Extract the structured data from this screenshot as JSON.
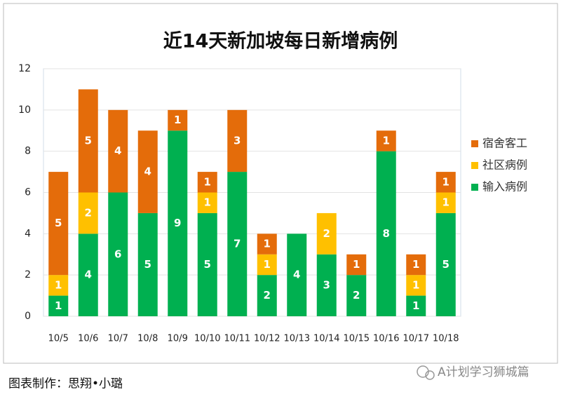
{
  "chart_data": {
    "type": "stacked_bar",
    "title": "近14天新加坡每日新增病例",
    "categories": [
      "10/5",
      "10/6",
      "10/7",
      "10/8",
      "10/9",
      "10/10",
      "10/11",
      "10/12",
      "10/13",
      "10/14",
      "10/15",
      "10/16",
      "10/17",
      "10/18"
    ],
    "series": [
      {
        "name": "输入病例",
        "color": "#00b050",
        "values": [
          1,
          4,
          6,
          5,
          9,
          5,
          7,
          2,
          4,
          3,
          2,
          8,
          1,
          5
        ]
      },
      {
        "name": "社区病例",
        "color": "#ffc000",
        "values": [
          1,
          2,
          0,
          0,
          0,
          1,
          0,
          1,
          0,
          2,
          0,
          0,
          1,
          1
        ]
      },
      {
        "name": "宿舍客工",
        "color": "#e46c0a",
        "values": [
          5,
          5,
          4,
          4,
          1,
          1,
          3,
          1,
          0,
          0,
          1,
          1,
          1,
          1
        ]
      }
    ],
    "ylim": [
      0,
      12
    ],
    "yticks": [
      0,
      2,
      4,
      6,
      8,
      10,
      12
    ],
    "grid": true,
    "legend": "right"
  },
  "footer": {
    "credit": "图表制作：思翔•小璐",
    "watermark": "A计划学习狮城篇"
  }
}
